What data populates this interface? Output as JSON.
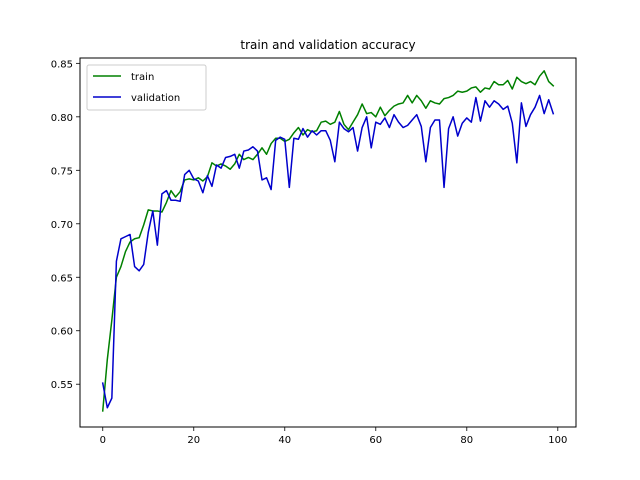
{
  "chart_data": {
    "type": "line",
    "title": "train and validation accuracy",
    "xlabel": "",
    "ylabel": "",
    "xlim": [
      -5,
      104
    ],
    "ylim": [
      0.51,
      0.855
    ],
    "xticks": [
      0,
      20,
      40,
      60,
      80,
      100
    ],
    "xtick_labels": [
      "0",
      "20",
      "40",
      "60",
      "80",
      "100"
    ],
    "yticks": [
      0.55,
      0.6,
      0.65,
      0.7,
      0.75,
      0.8,
      0.85
    ],
    "ytick_labels": [
      "0.55",
      "0.60",
      "0.65",
      "0.70",
      "0.75",
      "0.80",
      "0.85"
    ],
    "grid": false,
    "legend_position": "top-left",
    "x": [
      0,
      1,
      2,
      3,
      4,
      5,
      6,
      7,
      8,
      9,
      10,
      11,
      12,
      13,
      14,
      15,
      16,
      17,
      18,
      19,
      20,
      21,
      22,
      23,
      24,
      25,
      26,
      27,
      28,
      29,
      30,
      31,
      32,
      33,
      34,
      35,
      36,
      37,
      38,
      39,
      40,
      41,
      42,
      43,
      44,
      45,
      46,
      47,
      48,
      49,
      50,
      51,
      52,
      53,
      54,
      55,
      56,
      57,
      58,
      59,
      60,
      61,
      62,
      63,
      64,
      65,
      66,
      67,
      68,
      69,
      70,
      71,
      72,
      73,
      74,
      75,
      76,
      77,
      78,
      79,
      80,
      81,
      82,
      83,
      84,
      85,
      86,
      87,
      88,
      89,
      90,
      91,
      92,
      93,
      94,
      95,
      96,
      97,
      98,
      99
    ],
    "series": [
      {
        "name": "train",
        "color": "#008000",
        "values": [
          0.525,
          0.573,
          0.61,
          0.65,
          0.66,
          0.674,
          0.683,
          0.686,
          0.687,
          0.699,
          0.713,
          0.712,
          0.712,
          0.711,
          0.72,
          0.731,
          0.725,
          0.73,
          0.741,
          0.742,
          0.741,
          0.743,
          0.74,
          0.744,
          0.757,
          0.754,
          0.756,
          0.754,
          0.751,
          0.756,
          0.765,
          0.76,
          0.762,
          0.76,
          0.765,
          0.771,
          0.765,
          0.775,
          0.78,
          0.78,
          0.777,
          0.779,
          0.785,
          0.79,
          0.783,
          0.788,
          0.786,
          0.787,
          0.795,
          0.796,
          0.793,
          0.795,
          0.805,
          0.793,
          0.788,
          0.795,
          0.802,
          0.812,
          0.803,
          0.804,
          0.8,
          0.809,
          0.801,
          0.806,
          0.81,
          0.812,
          0.813,
          0.82,
          0.813,
          0.82,
          0.815,
          0.808,
          0.815,
          0.813,
          0.812,
          0.817,
          0.818,
          0.82,
          0.824,
          0.823,
          0.824,
          0.827,
          0.828,
          0.823,
          0.827,
          0.826,
          0.833,
          0.83,
          0.83,
          0.834,
          0.826,
          0.837,
          0.833,
          0.831,
          0.833,
          0.83,
          0.838,
          0.843,
          0.833,
          0.829
        ]
      },
      {
        "name": "validation",
        "color": "#0000cc",
        "values": [
          0.551,
          0.528,
          0.537,
          0.665,
          0.686,
          0.688,
          0.69,
          0.66,
          0.656,
          0.662,
          0.692,
          0.712,
          0.68,
          0.728,
          0.731,
          0.722,
          0.722,
          0.721,
          0.746,
          0.75,
          0.742,
          0.74,
          0.729,
          0.745,
          0.735,
          0.755,
          0.752,
          0.762,
          0.763,
          0.765,
          0.752,
          0.768,
          0.769,
          0.772,
          0.768,
          0.741,
          0.743,
          0.732,
          0.778,
          0.781,
          0.779,
          0.734,
          0.78,
          0.779,
          0.789,
          0.781,
          0.787,
          0.783,
          0.787,
          0.787,
          0.778,
          0.758,
          0.795,
          0.789,
          0.786,
          0.79,
          0.768,
          0.79,
          0.8,
          0.771,
          0.795,
          0.793,
          0.799,
          0.79,
          0.802,
          0.795,
          0.79,
          0.792,
          0.797,
          0.802,
          0.791,
          0.758,
          0.79,
          0.797,
          0.797,
          0.734,
          0.789,
          0.8,
          0.782,
          0.794,
          0.799,
          0.795,
          0.818,
          0.796,
          0.815,
          0.809,
          0.815,
          0.812,
          0.807,
          0.81,
          0.794,
          0.757,
          0.813,
          0.791,
          0.802,
          0.809,
          0.82,
          0.803,
          0.816,
          0.803
        ]
      }
    ]
  }
}
